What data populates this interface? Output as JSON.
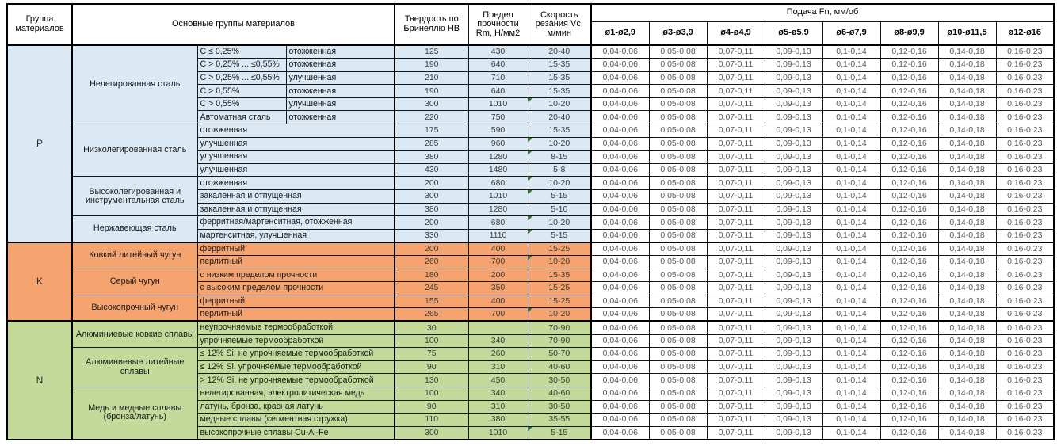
{
  "colors": {
    "group_P": "#DBE9F5",
    "group_K": "#F5A46F",
    "group_N": "#C3DA9B",
    "marker_green": "#2F7D32",
    "border": "#000000",
    "feed_text": "#595959"
  },
  "table": {
    "header": {
      "group_col": "Группа материалов",
      "materials_col": "Основные группы материалов",
      "hardness_col": "Твердость по Бринеллю HB",
      "strength_col": "Предел прочности Rm, Н/мм2",
      "speed_col": "Скорость резания Vc, м/мин",
      "feed_title": "Подача Fn, мм/об",
      "feed_columns": [
        "ø1-ø2,9",
        "ø3-ø3,9",
        "ø4-ø4,9",
        "ø5-ø5,9",
        "ø6-ø7,9",
        "ø8-ø9,9",
        "ø10-ø11,5",
        "ø12-ø16"
      ]
    },
    "feed_values": [
      "0,04-0,06",
      "0,05-0,08",
      "0,07-0,11",
      "0,09-0,13",
      "0,1-0,14",
      "0,12-0,16",
      "0,14-0,18",
      "0,16-0,23"
    ],
    "groups": [
      {
        "code": "P",
        "color": "#DBE9F5",
        "subgroups": [
          {
            "name": "Нелегированная сталь",
            "rows": [
              {
                "spec": "C ≤ 0,25%",
                "state": "отожженная",
                "hb": "125",
                "rm": "430",
                "vc": "20-40",
                "marker": false
              },
              {
                "spec": "C > 0,25% ... ≤0,55%",
                "state": "отожженная",
                "hb": "190",
                "rm": "640",
                "vc": "15-35",
                "marker": false
              },
              {
                "spec": "C > 0,25% ... ≤0,55%",
                "state": "улучшенная",
                "hb": "210",
                "rm": "710",
                "vc": "15-35",
                "marker": false
              },
              {
                "spec": "C > 0,55%",
                "state": "отожженная",
                "hb": "190",
                "rm": "640",
                "vc": "15-35",
                "marker": false
              },
              {
                "spec": "C > 0,55%",
                "state": "улучшенная",
                "hb": "300",
                "rm": "1010",
                "vc": "10-20",
                "marker": true
              },
              {
                "spec": "Автоматная сталь",
                "state": "отожженная",
                "hb": "220",
                "rm": "750",
                "vc": "20-40",
                "marker": false
              }
            ]
          },
          {
            "name": "Низколегированная сталь",
            "rows": [
              {
                "spec": "отожженная",
                "state": null,
                "hb": "175",
                "rm": "590",
                "vc": "15-35",
                "marker": false
              },
              {
                "spec": "улучшенная",
                "state": null,
                "hb": "285",
                "rm": "960",
                "vc": "10-20",
                "marker": true
              },
              {
                "spec": "улучшенная",
                "state": null,
                "hb": "380",
                "rm": "1280",
                "vc": "8-15",
                "marker": true
              },
              {
                "spec": "улучшенная",
                "state": null,
                "hb": "430",
                "rm": "1480",
                "vc": "5-8",
                "marker": false
              }
            ]
          },
          {
            "name": "Высоколегированная и инструментальная сталь",
            "rows": [
              {
                "spec": "отожженная",
                "state": null,
                "hb": "200",
                "rm": "680",
                "vc": "10-20",
                "marker": true
              },
              {
                "spec": "закаленная и отпущенная",
                "state": null,
                "hb": "300",
                "rm": "1010",
                "vc": "5-15",
                "marker": true
              },
              {
                "spec": "закаленная и отпущенная",
                "state": null,
                "hb": "380",
                "rm": "1280",
                "vc": "5-10",
                "marker": false
              }
            ]
          },
          {
            "name": "Нержавеющая сталь",
            "rows": [
              {
                "spec": "ферритная/мартенситная, отожженная",
                "state": null,
                "hb": "200",
                "rm": "680",
                "vc": "10-20",
                "marker": true
              },
              {
                "spec": "мартенситная, улучшенная",
                "state": null,
                "hb": "330",
                "rm": "1110",
                "vc": "5-15",
                "marker": true
              }
            ]
          }
        ]
      },
      {
        "code": "K",
        "color": "#F5A46F",
        "subgroups": [
          {
            "name": "Ковкий литейный чугун",
            "rows": [
              {
                "spec": "ферритный",
                "state": null,
                "hb": "200",
                "rm": "400",
                "vc": "15-25",
                "marker": false
              },
              {
                "spec": "перлитный",
                "state": null,
                "hb": "260",
                "rm": "700",
                "vc": "10-20",
                "marker": true
              }
            ]
          },
          {
            "name": "Серый чугун",
            "rows": [
              {
                "spec": "с низким пределом прочности",
                "state": null,
                "hb": "180",
                "rm": "200",
                "vc": "15-35",
                "marker": false
              },
              {
                "spec": "с высоким пределом прочности",
                "state": null,
                "hb": "245",
                "rm": "350",
                "vc": "15-25",
                "marker": false
              }
            ]
          },
          {
            "name": "Высокопрочный чугун",
            "rows": [
              {
                "spec": "ферритный",
                "state": null,
                "hb": "155",
                "rm": "400",
                "vc": "15-25",
                "marker": false
              },
              {
                "spec": "перлитный",
                "state": null,
                "hb": "265",
                "rm": "700",
                "vc": "10-20",
                "marker": true
              }
            ]
          }
        ]
      },
      {
        "code": "N",
        "color": "#C3DA9B",
        "subgroups": [
          {
            "name": "Алюминиевые ковкие сплавы",
            "rows": [
              {
                "spec": "неупрочняемые термообработкой",
                "state": null,
                "hb": "30",
                "rm": "",
                "vc": "70-90",
                "marker": false
              },
              {
                "spec": "упрочняемые термообработкой",
                "state": null,
                "hb": "100",
                "rm": "340",
                "vc": "70-90",
                "marker": false
              }
            ]
          },
          {
            "name": "Алюминиевые литейные сплавы",
            "rows": [
              {
                "spec": "≤ 12% Si, не упрочняемые термообработкой",
                "state": null,
                "hb": "75",
                "rm": "260",
                "vc": "50-70",
                "marker": false
              },
              {
                "spec": "≤ 12% Si, упрочняемые термообработкой",
                "state": null,
                "hb": "90",
                "rm": "310",
                "vc": "40-60",
                "marker": false
              },
              {
                "spec": "> 12% Si, не упрочняемые термообработкой",
                "state": null,
                "hb": "130",
                "rm": "450",
                "vc": "30-50",
                "marker": false
              }
            ]
          },
          {
            "name": "Медь и медные сплавы (бронза/латунь)",
            "rows": [
              {
                "spec": "нелегированная, электролитическая медь",
                "state": null,
                "hb": "100",
                "rm": "340",
                "vc": "40-60",
                "marker": false
              },
              {
                "spec": "латунь, бронза, красная латунь",
                "state": null,
                "hb": "90",
                "rm": "310",
                "vc": "30-50",
                "marker": false
              },
              {
                "spec": "медные сплавы (сегментная стружка)",
                "state": null,
                "hb": "110",
                "rm": "380",
                "vc": "35-55",
                "marker": false
              },
              {
                "spec": "высокопрочные сплавы Cu-Al-Fe",
                "state": null,
                "hb": "300",
                "rm": "1010",
                "vc": "5-15",
                "marker": true
              }
            ]
          }
        ]
      }
    ]
  }
}
